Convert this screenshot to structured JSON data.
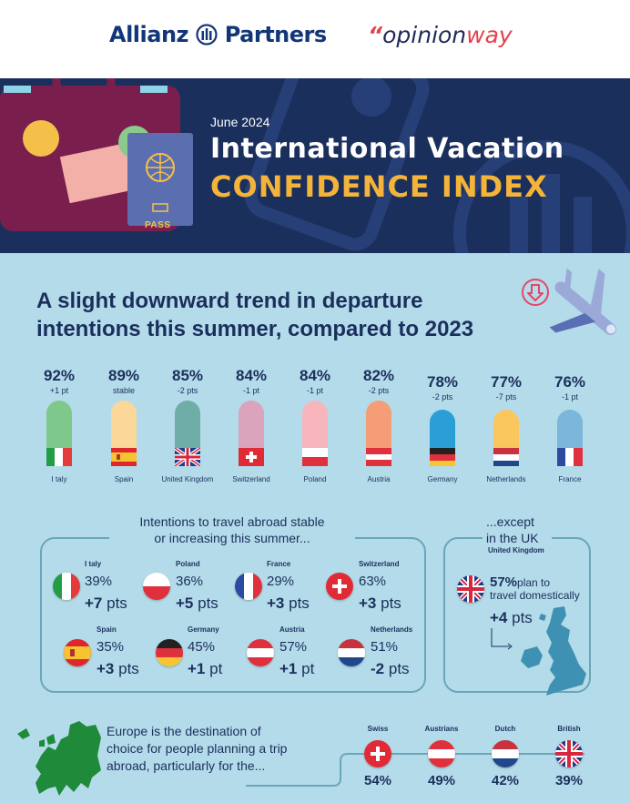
{
  "logos": {
    "allianz": "Allianz",
    "allianz_partners": "Partners",
    "opinion_quote": "“",
    "opinion_a": "opinion",
    "opinion_b": "way"
  },
  "banner": {
    "date": "June 2024",
    "title_line1": "International Vacation",
    "title_line2": "CONFIDENCE INDEX",
    "passport_label": "PASS"
  },
  "headline": "A slight downward trend in departure intentions this summer, compared to 2023",
  "countries": [
    {
      "name": "I taly",
      "pct": "92%",
      "change": "+1 pt",
      "pill_color": "#7fc88c"
    },
    {
      "name": "Spain",
      "pct": "89%",
      "change": "stable",
      "pill_color": "#fbd89a"
    },
    {
      "name": "United Kingdom",
      "pct": "85%",
      "change": "-2 pts",
      "pill_color": "#6faea6"
    },
    {
      "name": "Switzerland",
      "pct": "84%",
      "change": "-1 pt",
      "pill_color": "#d9a4bc"
    },
    {
      "name": "Poland",
      "pct": "84%",
      "change": "-1 pt",
      "pill_color": "#f7b6be"
    },
    {
      "name": "Austria",
      "pct": "82%",
      "change": "-2 pts",
      "pill_color": "#f59d77"
    },
    {
      "name": "Germany",
      "pct": "78%",
      "change": "-2 pts",
      "pill_color": "#2a9fd6"
    },
    {
      "name": "Netherlands",
      "pct": "77%",
      "change": "-7 pts",
      "pill_color": "#f9c75e"
    },
    {
      "name": "France",
      "pct": "76%",
      "change": "-1 pt",
      "pill_color": "#7ab7da"
    }
  ],
  "stable_box": {
    "title_line1": "Intentions to travel abroad stable",
    "title_line2": "or increasing this summer...",
    "items": [
      {
        "name": "I taly",
        "pct": "39%",
        "pts_num": "+7",
        "pts_unit": "pts"
      },
      {
        "name": "Poland",
        "pct": "36%",
        "pts_num": "+5",
        "pts_unit": "pts"
      },
      {
        "name": "France",
        "pct": "29%",
        "pts_num": "+3",
        "pts_unit": "pts"
      },
      {
        "name": "Switzerland",
        "pct": "63%",
        "pts_num": "+3",
        "pts_unit": "pts"
      },
      {
        "name": "Spain",
        "pct": "35%",
        "pts_num": "+3",
        "pts_unit": "pts"
      },
      {
        "name": "Germany",
        "pct": "45%",
        "pts_num": "+1",
        "pts_unit": "pt"
      },
      {
        "name": "Austria",
        "pct": "57%",
        "pts_num": "+1",
        "pts_unit": "pt"
      },
      {
        "name": "Netherlands",
        "pct": "51%",
        "pts_num": "-2",
        "pts_unit": "pts"
      }
    ]
  },
  "uk_box": {
    "title_line1": "...except",
    "title_line2": "in the UK",
    "country": "United Kingdom",
    "pct": "57%",
    "text_a": "plan to",
    "text_b": "travel domestically",
    "pts_num": "+4",
    "pts_unit": "pts"
  },
  "europe": {
    "text": "Europe is the destination of choice for people planning a trip abroad, particularly for the...",
    "nationalities": [
      {
        "name": "Swiss",
        "pct": "54%"
      },
      {
        "name": "Austrians",
        "pct": "49%"
      },
      {
        "name": "Dutch",
        "pct": "42%"
      },
      {
        "name": "British",
        "pct": "39%"
      }
    ]
  }
}
